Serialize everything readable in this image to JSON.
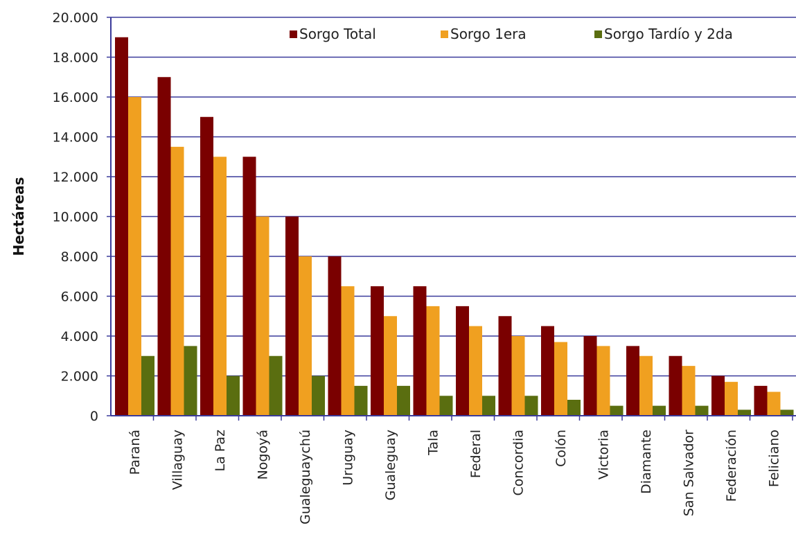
{
  "chart_data": {
    "type": "bar",
    "title": "",
    "xlabel": "",
    "ylabel": "Hectáreas",
    "ylim": [
      0,
      20000
    ],
    "yticks": [
      0,
      2000,
      4000,
      6000,
      8000,
      10000,
      12000,
      14000,
      16000,
      18000,
      20000
    ],
    "ytick_labels": [
      "0",
      "2.000",
      "4.000",
      "6.000",
      "8.000",
      "10.000",
      "12.000",
      "14.000",
      "16.000",
      "18.000",
      "20.000"
    ],
    "grid": true,
    "legend_position": "top-right",
    "categories": [
      "Paraná",
      "Villaguay",
      "La Paz",
      "Nogoyá",
      "Gualeguaychú",
      "Uruguay",
      "Gualeguay",
      "Tala",
      "Federal",
      "Concordia",
      "Colón",
      "Victoria",
      "Diamante",
      "San Salvador",
      "Federación",
      "Feliciano"
    ],
    "series": [
      {
        "name": "Sorgo Total",
        "color": "#7a0000",
        "values": [
          19000,
          17000,
          15000,
          13000,
          10000,
          8000,
          6500,
          6500,
          5500,
          5000,
          4500,
          4000,
          3500,
          3000,
          2000,
          1500
        ]
      },
      {
        "name": "Sorgo 1era",
        "color": "#f0a020",
        "values": [
          16000,
          13500,
          13000,
          10000,
          8000,
          6500,
          5000,
          5500,
          4500,
          4000,
          3700,
          3500,
          3000,
          2500,
          1700,
          1200
        ]
      },
      {
        "name": "Sorgo Tardío y 2da",
        "color": "#5a6e10",
        "values": [
          3000,
          3500,
          2000,
          3000,
          2000,
          1500,
          1500,
          1000,
          1000,
          1000,
          800,
          500,
          500,
          500,
          300,
          300
        ]
      }
    ],
    "colors": {
      "gridline": "#3a3a9a",
      "axis": "#3a3a9a"
    }
  }
}
